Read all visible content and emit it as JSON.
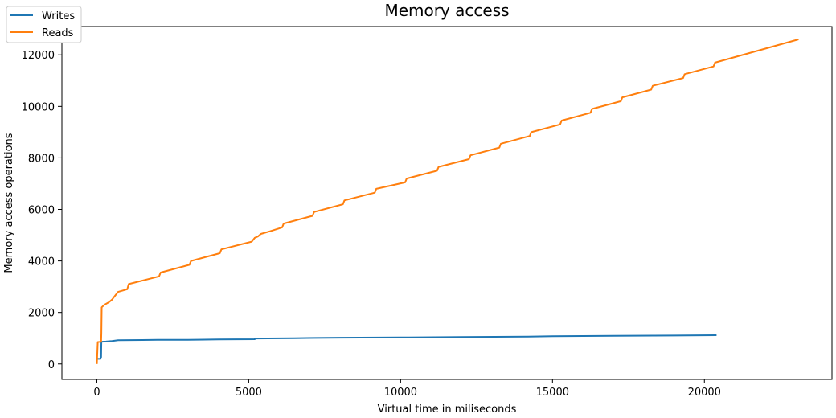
{
  "chart_data": {
    "type": "line",
    "title": "Memory access",
    "xlabel": "Virtual time in miliseconds",
    "ylabel": "Memory access operations",
    "xlim": [
      -1150,
      24200
    ],
    "ylim": [
      -600,
      13100
    ],
    "xticks": [
      0,
      5000,
      10000,
      15000,
      20000
    ],
    "yticks": [
      0,
      2000,
      4000,
      6000,
      8000,
      10000,
      12000
    ],
    "legend_position": "top-left",
    "grid": false,
    "series": [
      {
        "name": "Writes",
        "color": "#1f77b4",
        "points": [
          [
            0,
            200
          ],
          [
            120,
            200
          ],
          [
            120,
            260
          ],
          [
            140,
            260
          ],
          [
            150,
            860
          ],
          [
            300,
            870
          ],
          [
            500,
            890
          ],
          [
            700,
            920
          ],
          [
            1500,
            930
          ],
          [
            2000,
            935
          ],
          [
            3000,
            940
          ],
          [
            4000,
            950
          ],
          [
            5200,
            960
          ],
          [
            5200,
            990
          ],
          [
            6500,
            1000
          ],
          [
            7200,
            1010
          ],
          [
            8000,
            1020
          ],
          [
            10000,
            1030
          ],
          [
            12000,
            1045
          ],
          [
            14200,
            1060
          ],
          [
            15000,
            1075
          ],
          [
            17000,
            1090
          ],
          [
            19000,
            1105
          ],
          [
            20400,
            1115
          ]
        ]
      },
      {
        "name": "Reads",
        "color": "#ff7f0e",
        "points": [
          [
            0,
            0
          ],
          [
            30,
            850
          ],
          [
            140,
            860
          ],
          [
            150,
            1200
          ],
          [
            160,
            2200
          ],
          [
            250,
            2300
          ],
          [
            400,
            2400
          ],
          [
            500,
            2500
          ],
          [
            600,
            2650
          ],
          [
            700,
            2800
          ],
          [
            1000,
            2900
          ],
          [
            1050,
            3100
          ],
          [
            2050,
            3400
          ],
          [
            2100,
            3550
          ],
          [
            3050,
            3850
          ],
          [
            3100,
            4000
          ],
          [
            4050,
            4300
          ],
          [
            4100,
            4450
          ],
          [
            5100,
            4750
          ],
          [
            5200,
            4900
          ],
          [
            5300,
            4950
          ],
          [
            5400,
            5050
          ],
          [
            5700,
            5150
          ],
          [
            6100,
            5300
          ],
          [
            6150,
            5450
          ],
          [
            7100,
            5750
          ],
          [
            7150,
            5900
          ],
          [
            8100,
            6200
          ],
          [
            8150,
            6350
          ],
          [
            9150,
            6650
          ],
          [
            9200,
            6800
          ],
          [
            10150,
            7050
          ],
          [
            10200,
            7200
          ],
          [
            11200,
            7500
          ],
          [
            11250,
            7650
          ],
          [
            12250,
            7950
          ],
          [
            12300,
            8100
          ],
          [
            13250,
            8400
          ],
          [
            13300,
            8550
          ],
          [
            14250,
            8850
          ],
          [
            14300,
            9000
          ],
          [
            15250,
            9300
          ],
          [
            15300,
            9450
          ],
          [
            16250,
            9750
          ],
          [
            16300,
            9900
          ],
          [
            17250,
            10200
          ],
          [
            17300,
            10350
          ],
          [
            18250,
            10650
          ],
          [
            18300,
            10800
          ],
          [
            19300,
            11100
          ],
          [
            19350,
            11250
          ],
          [
            20300,
            11550
          ],
          [
            20350,
            11700
          ],
          [
            23100,
            12600
          ]
        ]
      }
    ]
  }
}
